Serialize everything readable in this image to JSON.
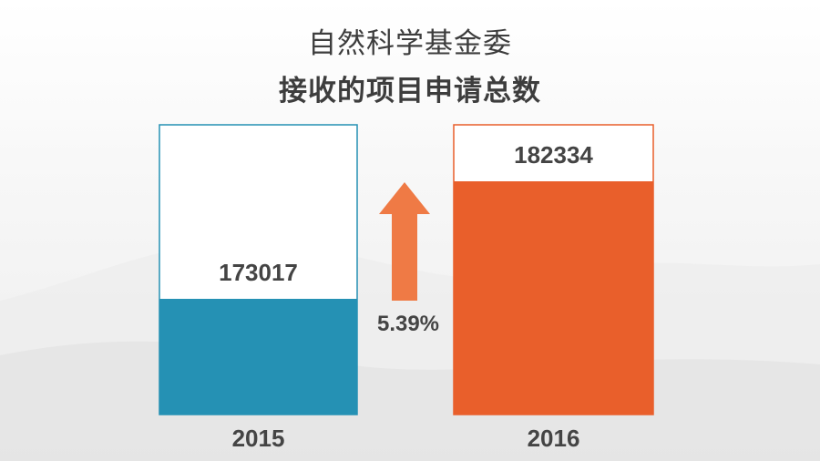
{
  "title_line1": "自然科学基金委",
  "title_line2": "接收的项目申请总数",
  "change_label": "5.39%",
  "colors": {
    "bar_2015": "#2591b4",
    "bar_2016": "#e95f2b",
    "arrow": "#ef7a45",
    "frame_2015": "#2591b4",
    "frame_2016": "#e95f2b",
    "text": "#444444"
  },
  "chart_data": {
    "type": "bar",
    "categories": [
      "2015",
      "2016"
    ],
    "values": [
      173017,
      182334
    ],
    "value_labels": [
      "173017",
      "182334"
    ],
    "change_percent": 5.39,
    "title": "自然科学基金委 接收的项目申请总数",
    "xlabel": "",
    "ylabel": ""
  }
}
